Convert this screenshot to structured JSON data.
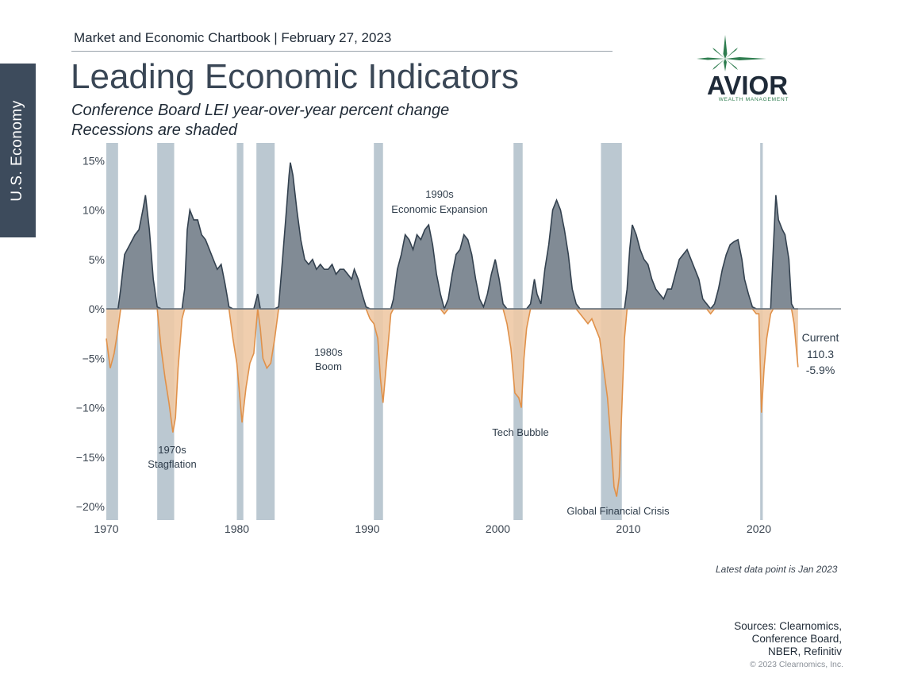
{
  "side_tab": {
    "label": "U.S. Economy"
  },
  "header": {
    "chartbook": "Market and Economic Chartbook | February 27, 2023"
  },
  "title": "Leading Economic Indicators",
  "subtitle": {
    "line1": "Conference  Board LEI year-over-year percent change",
    "line2": "Recessions are shaded"
  },
  "logo": {
    "name": "AVIOR",
    "tagline": "WEALTH MANAGEMENT",
    "icon": "star-burst-icon",
    "color": "#2e7d4f",
    "text_color": "#1e2a38"
  },
  "footnote": {
    "latest": "Latest data point is Jan 2023"
  },
  "sources": {
    "line1": "Sources: Clearnomics,",
    "line2": "Conference Board,",
    "line3": "NBER, Refinitiv"
  },
  "copyright": "© 2023 Clearnomics, Inc.",
  "colors": {
    "positive": "#6b7783",
    "positive_line": "#33414f",
    "negative": "#eec9a5",
    "negative_line": "#e0914a",
    "recession": "#b7c5cf",
    "zero_line": "#6f7a84"
  },
  "chart_data": {
    "type": "area",
    "xlabel": "",
    "ylabel": "",
    "xlim": [
      1970,
      2025
    ],
    "ylim": [
      -21,
      16
    ],
    "x_ticks": [
      1970,
      1980,
      1990,
      2000,
      2010,
      2020
    ],
    "y_ticks": [
      15,
      10,
      5,
      0,
      -5,
      -10,
      -15,
      -20
    ],
    "y_tick_labels": [
      "15%",
      "10%",
      "5%",
      "0%",
      "−5%",
      "−10%",
      "−15%",
      "−20%"
    ],
    "recessions": [
      [
        1970.0,
        1970.9
      ],
      [
        1973.9,
        1975.2
      ],
      [
        1980.0,
        1980.5
      ],
      [
        1981.5,
        1982.9
      ],
      [
        1990.5,
        1991.2
      ],
      [
        2001.2,
        2001.9
      ],
      [
        2007.9,
        2009.5
      ],
      [
        2020.1,
        2020.3
      ]
    ],
    "series": [
      {
        "values": [
          [
            1970.0,
            -3.0
          ],
          [
            1970.3,
            -6.0
          ],
          [
            1970.6,
            -4.5
          ],
          [
            1970.9,
            -2.0
          ],
          [
            1971.1,
            2.0
          ],
          [
            1971.4,
            5.5
          ],
          [
            1971.8,
            6.5
          ],
          [
            1972.2,
            7.5
          ],
          [
            1972.5,
            8.0
          ],
          [
            1972.8,
            10.0
          ],
          [
            1973.0,
            11.5
          ],
          [
            1973.3,
            8.0
          ],
          [
            1973.6,
            3.0
          ],
          [
            1973.9,
            0.2
          ],
          [
            1974.2,
            -4.0
          ],
          [
            1974.5,
            -7.0
          ],
          [
            1974.8,
            -9.5
          ],
          [
            1975.1,
            -12.5
          ],
          [
            1975.3,
            -11.0
          ],
          [
            1975.5,
            -6.0
          ],
          [
            1975.8,
            -1.0
          ],
          [
            1976.0,
            2.0
          ],
          [
            1976.2,
            8.0
          ],
          [
            1976.4,
            10.0
          ],
          [
            1976.7,
            9.0
          ],
          [
            1977.0,
            9.0
          ],
          [
            1977.3,
            7.5
          ],
          [
            1977.6,
            7.0
          ],
          [
            1977.9,
            6.0
          ],
          [
            1978.2,
            5.0
          ],
          [
            1978.5,
            4.0
          ],
          [
            1978.8,
            4.5
          ],
          [
            1979.1,
            2.5
          ],
          [
            1979.4,
            0.2
          ],
          [
            1979.7,
            -3.0
          ],
          [
            1980.0,
            -5.5
          ],
          [
            1980.4,
            -11.5
          ],
          [
            1980.7,
            -8.0
          ],
          [
            1981.0,
            -5.5
          ],
          [
            1981.3,
            -4.5
          ],
          [
            1981.6,
            1.5
          ],
          [
            1981.8,
            -2.0
          ],
          [
            1982.0,
            -5.0
          ],
          [
            1982.3,
            -6.0
          ],
          [
            1982.6,
            -5.5
          ],
          [
            1982.9,
            -3.0
          ],
          [
            1983.2,
            0.2
          ],
          [
            1983.5,
            5.0
          ],
          [
            1983.8,
            10.0
          ],
          [
            1984.0,
            13.5
          ],
          [
            1984.1,
            14.8
          ],
          [
            1984.3,
            13.5
          ],
          [
            1984.6,
            10.0
          ],
          [
            1984.9,
            7.0
          ],
          [
            1985.2,
            5.0
          ],
          [
            1985.5,
            4.5
          ],
          [
            1985.8,
            5.0
          ],
          [
            1986.1,
            4.0
          ],
          [
            1986.4,
            4.5
          ],
          [
            1986.7,
            4.0
          ],
          [
            1987.0,
            4.0
          ],
          [
            1987.3,
            4.5
          ],
          [
            1987.6,
            3.5
          ],
          [
            1987.9,
            4.0
          ],
          [
            1988.2,
            4.0
          ],
          [
            1988.5,
            3.5
          ],
          [
            1988.8,
            3.0
          ],
          [
            1989.0,
            4.0
          ],
          [
            1989.3,
            3.0
          ],
          [
            1989.6,
            1.5
          ],
          [
            1989.9,
            0.2
          ],
          [
            1990.2,
            -1.0
          ],
          [
            1990.5,
            -1.5
          ],
          [
            1990.8,
            -3.0
          ],
          [
            1991.0,
            -7.0
          ],
          [
            1991.2,
            -9.5
          ],
          [
            1991.5,
            -5.0
          ],
          [
            1991.8,
            -0.5
          ],
          [
            1992.0,
            1.0
          ],
          [
            1992.3,
            4.0
          ],
          [
            1992.6,
            5.5
          ],
          [
            1992.9,
            7.5
          ],
          [
            1993.2,
            7.0
          ],
          [
            1993.5,
            6.0
          ],
          [
            1993.8,
            7.5
          ],
          [
            1994.1,
            7.0
          ],
          [
            1994.4,
            8.0
          ],
          [
            1994.7,
            8.5
          ],
          [
            1995.0,
            6.5
          ],
          [
            1995.3,
            3.5
          ],
          [
            1995.6,
            1.5
          ],
          [
            1995.9,
            -0.5
          ],
          [
            1996.2,
            1.0
          ],
          [
            1996.5,
            3.5
          ],
          [
            1996.8,
            5.5
          ],
          [
            1997.1,
            6.0
          ],
          [
            1997.4,
            7.5
          ],
          [
            1997.7,
            7.0
          ],
          [
            1998.0,
            5.5
          ],
          [
            1998.3,
            3.0
          ],
          [
            1998.6,
            1.0
          ],
          [
            1998.9,
            0.2
          ],
          [
            1999.2,
            1.5
          ],
          [
            1999.5,
            3.5
          ],
          [
            1999.8,
            5.0
          ],
          [
            2000.1,
            3.0
          ],
          [
            2000.4,
            0.5
          ],
          [
            2000.7,
            -1.5
          ],
          [
            2001.0,
            -4.0
          ],
          [
            2001.3,
            -8.5
          ],
          [
            2001.6,
            -9.0
          ],
          [
            2001.8,
            -10.0
          ],
          [
            2002.0,
            -5.0
          ],
          [
            2002.2,
            -2.0
          ],
          [
            2002.5,
            0.5
          ],
          [
            2002.8,
            3.0
          ],
          [
            2003.0,
            1.5
          ],
          [
            2003.3,
            0.5
          ],
          [
            2003.6,
            4.0
          ],
          [
            2003.9,
            6.5
          ],
          [
            2004.2,
            10.0
          ],
          [
            2004.5,
            11.0
          ],
          [
            2004.8,
            10.0
          ],
          [
            2005.1,
            8.0
          ],
          [
            2005.4,
            5.5
          ],
          [
            2005.7,
            2.0
          ],
          [
            2006.0,
            0.5
          ],
          [
            2006.3,
            -0.5
          ],
          [
            2006.6,
            -1.0
          ],
          [
            2006.9,
            -1.5
          ],
          [
            2007.2,
            -1.0
          ],
          [
            2007.5,
            -2.0
          ],
          [
            2007.8,
            -3.0
          ],
          [
            2008.1,
            -6.0
          ],
          [
            2008.4,
            -9.0
          ],
          [
            2008.7,
            -14.0
          ],
          [
            2008.9,
            -18.0
          ],
          [
            2009.1,
            -19.0
          ],
          [
            2009.3,
            -17.0
          ],
          [
            2009.5,
            -10.0
          ],
          [
            2009.7,
            -3.0
          ],
          [
            2009.9,
            2.0
          ],
          [
            2010.1,
            6.0
          ],
          [
            2010.3,
            8.5
          ],
          [
            2010.6,
            7.5
          ],
          [
            2010.9,
            6.0
          ],
          [
            2011.2,
            5.0
          ],
          [
            2011.5,
            4.5
          ],
          [
            2011.8,
            3.0
          ],
          [
            2012.1,
            2.0
          ],
          [
            2012.4,
            1.5
          ],
          [
            2012.7,
            1.0
          ],
          [
            2013.0,
            2.0
          ],
          [
            2013.3,
            2.0
          ],
          [
            2013.6,
            3.5
          ],
          [
            2013.9,
            5.0
          ],
          [
            2014.2,
            5.5
          ],
          [
            2014.5,
            6.0
          ],
          [
            2014.8,
            5.0
          ],
          [
            2015.1,
            4.0
          ],
          [
            2015.4,
            3.0
          ],
          [
            2015.7,
            1.0
          ],
          [
            2016.0,
            0.5
          ],
          [
            2016.3,
            -0.5
          ],
          [
            2016.6,
            0.5
          ],
          [
            2016.9,
            2.0
          ],
          [
            2017.2,
            4.0
          ],
          [
            2017.5,
            5.5
          ],
          [
            2017.8,
            6.5
          ],
          [
            2018.1,
            6.8
          ],
          [
            2018.4,
            7.0
          ],
          [
            2018.7,
            5.0
          ],
          [
            2018.9,
            3.0
          ],
          [
            2019.2,
            1.5
          ],
          [
            2019.5,
            0.2
          ],
          [
            2019.8,
            -0.5
          ],
          [
            2020.0,
            -0.5
          ],
          [
            2020.2,
            -10.5
          ],
          [
            2020.4,
            -6.0
          ],
          [
            2020.6,
            -3.0
          ],
          [
            2020.9,
            -0.5
          ],
          [
            2021.1,
            6.0
          ],
          [
            2021.3,
            11.5
          ],
          [
            2021.5,
            9.0
          ],
          [
            2021.8,
            8.0
          ],
          [
            2022.0,
            7.5
          ],
          [
            2022.3,
            5.0
          ],
          [
            2022.5,
            0.5
          ],
          [
            2022.7,
            -1.5
          ],
          [
            2022.9,
            -4.5
          ],
          [
            2023.0,
            -5.9
          ]
        ]
      }
    ]
  },
  "annotations": {
    "stag1": "1970s",
    "stag2": "Stagflation",
    "boom1": "1980s",
    "boom2": "Boom",
    "exp1": "1990s",
    "exp2": "Economic Expansion",
    "tech": "Tech Bubble",
    "gfc": "Global Financial Crisis",
    "cur1": "Current",
    "cur2": "110.3",
    "cur3": "-5.9%"
  }
}
